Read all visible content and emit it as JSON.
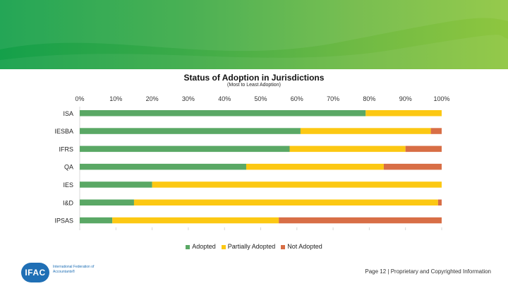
{
  "header": {
    "banner_colors": [
      "#14a04a",
      "#8ec63f"
    ]
  },
  "chart_data": {
    "type": "bar",
    "orientation": "horizontal",
    "stacked": true,
    "title": "Status of Adoption in Jurisdictions",
    "subtitle": "(Most to Least Adoption)",
    "xlim": [
      0,
      100
    ],
    "x_ticks": [
      "0%",
      "10%",
      "20%",
      "30%",
      "40%",
      "50%",
      "60%",
      "70%",
      "80%",
      "90%",
      "100%"
    ],
    "categories": [
      "ISA",
      "IESBA",
      "IFRS",
      "QA",
      "IES",
      "I&D",
      "IPSAS"
    ],
    "series": [
      {
        "name": "Adopted",
        "color": "#5aa865",
        "values": [
          79,
          61,
          58,
          46,
          20,
          15,
          9
        ]
      },
      {
        "name": "Partially Adopted",
        "color": "#fcc813",
        "values": [
          21,
          36,
          32,
          38,
          80,
          84,
          46
        ]
      },
      {
        "name": "Not Adopted",
        "color": "#d86e46",
        "values": [
          0,
          3,
          10,
          16,
          0,
          1,
          45
        ]
      }
    ],
    "legend_position": "bottom",
    "grid": false
  },
  "logo": {
    "mark": "IFAC",
    "tagline": "International Federation of Accountants®"
  },
  "footer": {
    "text": "Page 12 | Proprietary and Copyrighted Information"
  }
}
